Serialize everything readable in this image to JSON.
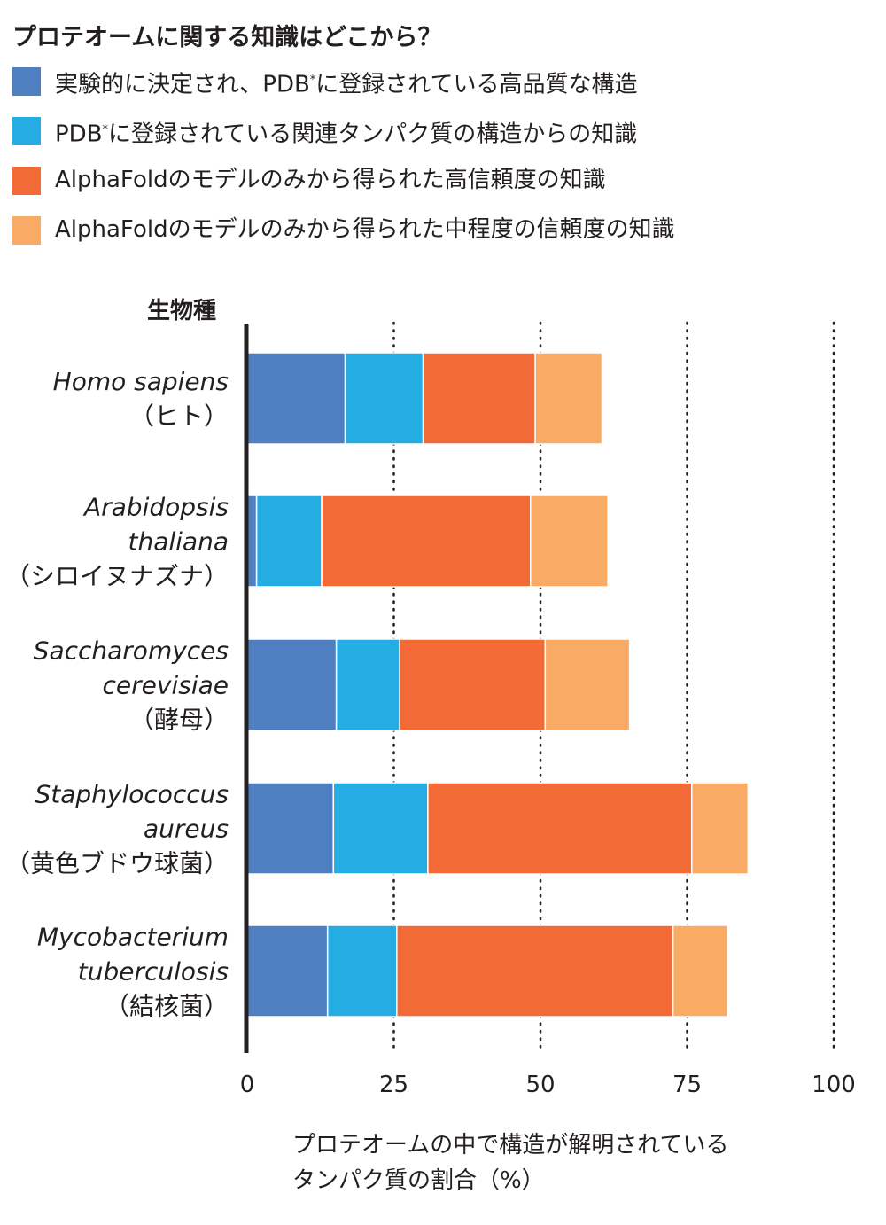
{
  "title": "プロテオームに関する知識はどこから？",
  "legend": [
    {
      "label": "実験的に決定され、PDB",
      "sup": "*",
      "suffix": "に登録されている高品質な構造",
      "color": "#4e7fc1"
    },
    {
      "label": "PDB",
      "sup": "*",
      "suffix": "に登録されている関連タンパク質の構造からの知識",
      "color": "#25ade3"
    },
    {
      "label": "AlphaFoldのモデルのみから得られた高信頼度の知識",
      "sup": "",
      "suffix": "",
      "color": "#f26a36"
    },
    {
      "label": "AlphaFoldのモデルのみから得られた中程度の信頼度の知識",
      "sup": "",
      "suffix": "",
      "color": "#f9ab66"
    }
  ],
  "chart_data": {
    "type": "bar",
    "orientation": "horizontal",
    "stacked": true,
    "title": "プロテオームに関する知識はどこから？",
    "ylabel": "生物種",
    "xlabel_lines": [
      "プロテオームの中で構造が解明されている",
      "タンパク質の割合（%）"
    ],
    "xlim": [
      0,
      100
    ],
    "xticks": [
      0,
      25,
      50,
      75,
      100
    ],
    "grid": "vertical dotted at 25, 50, 75, 100",
    "categories": [
      [
        "Homo sapiens",
        "（ヒト）"
      ],
      [
        "Arabidopsis",
        "thaliana",
        "（シロイヌナズナ）"
      ],
      [
        "Saccharomyces",
        "cerevisiae",
        "（酵母）"
      ],
      [
        "Staphylococcus",
        "aureus",
        "（黄色ブドウ球菌）"
      ],
      [
        "Mycobacterium",
        "tuberculosis",
        "（結核菌）"
      ]
    ],
    "series": [
      {
        "name": "実験的に決定され、PDB*に登録されている高品質な構造",
        "color": "#4e7fc1",
        "values": [
          16.7,
          1.6,
          15.2,
          14.7,
          13.7
        ]
      },
      {
        "name": "PDB*に登録されている関連タンパク質の構造からの知識",
        "color": "#25ade3",
        "values": [
          13.3,
          11.1,
          10.8,
          16.1,
          11.8
        ]
      },
      {
        "name": "AlphaFoldのモデルのみから得られた高信頼度の知識",
        "color": "#f26a36",
        "values": [
          19.1,
          35.6,
          24.8,
          45.0,
          47.1
        ]
      },
      {
        "name": "AlphaFoldのモデルのみから得られた中程度の信頼度の知識",
        "color": "#f9ab66",
        "values": [
          11.4,
          13.2,
          14.4,
          9.6,
          9.3
        ]
      }
    ]
  }
}
